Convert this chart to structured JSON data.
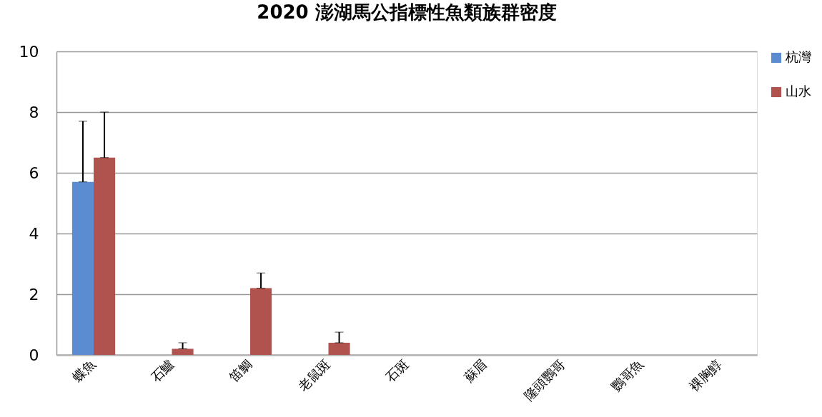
{
  "chart_data": {
    "type": "bar",
    "title": "2020 澎湖馬公指標性魚類族群密度",
    "categories": [
      "蝶魚",
      "石鱸",
      "笛鯛",
      "老鼠斑",
      "石斑",
      "蘇眉",
      "隆頭鸚哥",
      "鸚哥魚",
      "裸胸鯙"
    ],
    "series": [
      {
        "name": "杭灣",
        "color": "#5b8bd0",
        "values": [
          5.7,
          0,
          0,
          0,
          0,
          0,
          0,
          0,
          0
        ],
        "errors": [
          [
            5.7,
            7.7
          ],
          null,
          null,
          null,
          null,
          null,
          null,
          null,
          null
        ]
      },
      {
        "name": "山水",
        "color": "#b0534e",
        "values": [
          6.5,
          0.2,
          2.2,
          0.4,
          0,
          0,
          0,
          0,
          0
        ],
        "errors": [
          [
            6.5,
            8.0
          ],
          [
            0.2,
            0.4
          ],
          [
            2.2,
            2.7
          ],
          [
            0.4,
            0.75
          ],
          null,
          null,
          null,
          null,
          null
        ]
      }
    ],
    "ylim": [
      0,
      10
    ],
    "yticks": [
      0,
      2,
      4,
      6,
      8,
      10
    ],
    "grid": "y",
    "legend": "right"
  }
}
